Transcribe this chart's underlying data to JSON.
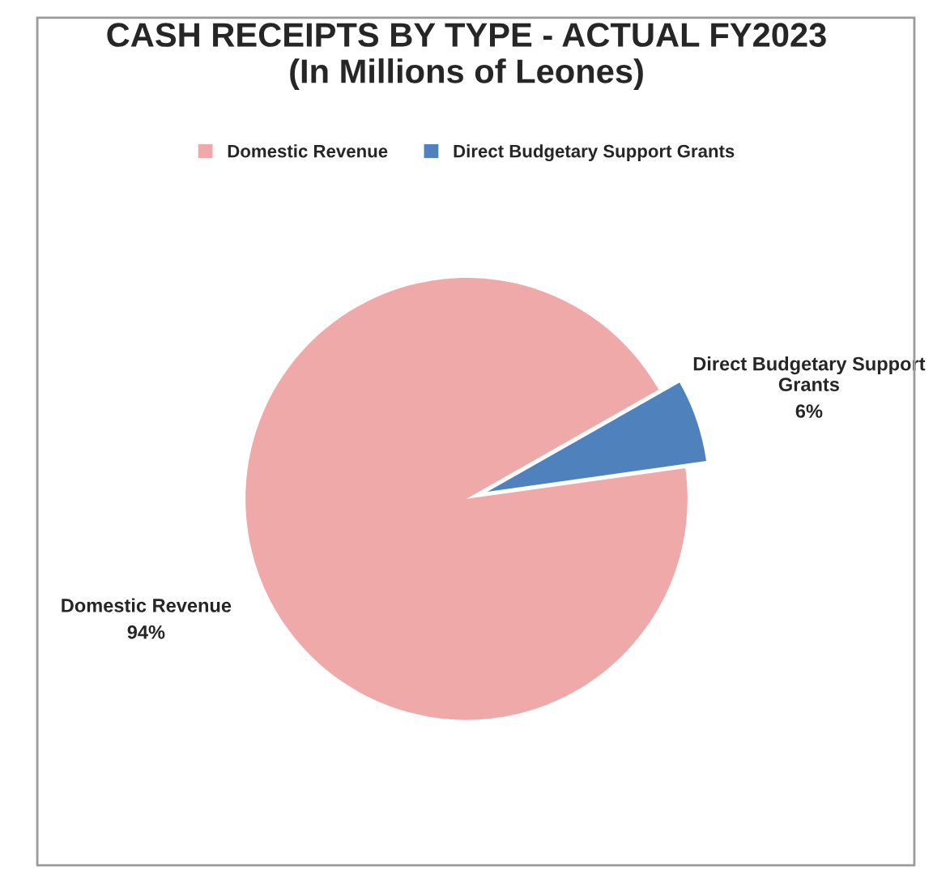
{
  "chart_data": {
    "type": "pie",
    "title": "CASH RECEIPTS BY TYPE - ACTUAL FY2023\n(In Millions of Leones)",
    "categories": [
      "Domestic Revenue",
      "Direct Budgetary Support Grants"
    ],
    "values": [
      94,
      6
    ],
    "value_labels": [
      "94%",
      "6%"
    ],
    "colors": [
      "#f0a9a9",
      "#4f81bd"
    ],
    "legend": "top"
  }
}
